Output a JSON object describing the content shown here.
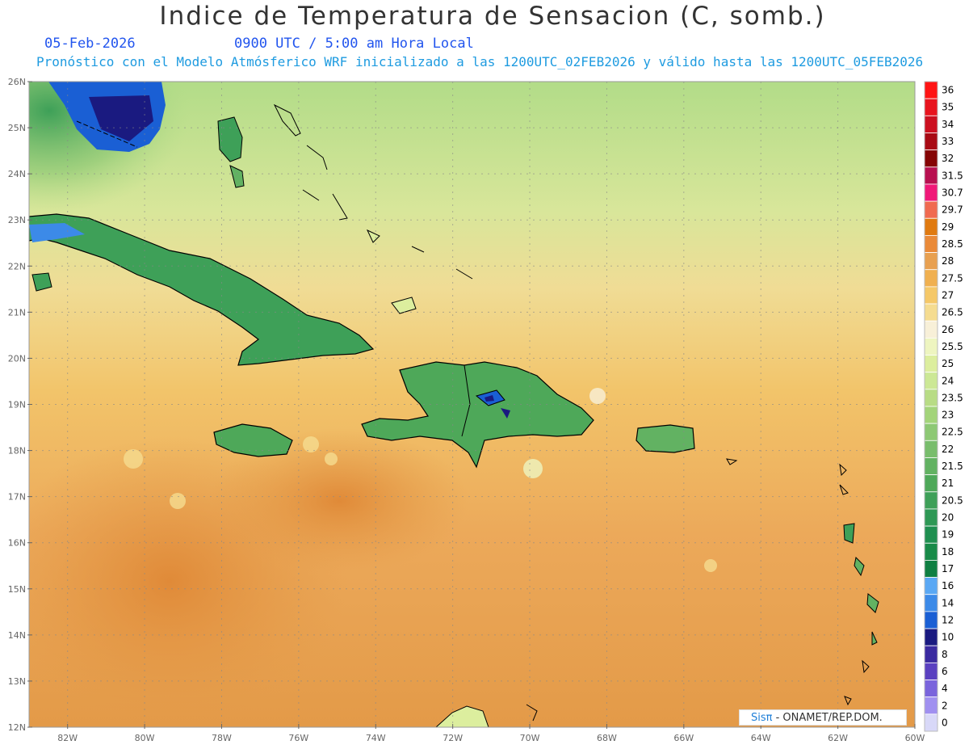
{
  "header": {
    "title": "Indice de Temperatura de Sensacion (C, somb.)",
    "date": "05-Feb-2026",
    "time": "0900 UTC / 5:00 am Hora Local",
    "model_info": "Pronóstico con el Modelo Atmósferico WRF inicializado a las 1200UTC_02FEB2026 y válido hasta las  1200UTC_05FEB2026"
  },
  "map": {
    "lat_range": [
      12,
      26
    ],
    "lon_range": [
      -83,
      -60
    ],
    "lat_labels": [
      "12N",
      "13N",
      "14N",
      "15N",
      "16N",
      "17N",
      "18N",
      "19N",
      "20N",
      "21N",
      "22N",
      "23N",
      "24N",
      "25N",
      "26N"
    ],
    "lon_labels": [
      "82W",
      "80W",
      "78W",
      "76W",
      "74W",
      "72W",
      "70W",
      "68W",
      "66W",
      "64W",
      "62W",
      "60W"
    ],
    "ocean_gradient": [
      "#e39a48",
      "#eca95a",
      "#f2c46a",
      "#f0dc95",
      "#d8e69a",
      "#b2dc88"
    ]
  },
  "colorbar": {
    "levels": [
      {
        "label": "36",
        "color": "#ff1414"
      },
      {
        "label": "35",
        "color": "#e8141e"
      },
      {
        "label": "34",
        "color": "#cc1020"
      },
      {
        "label": "33",
        "color": "#a80a14"
      },
      {
        "label": "32",
        "color": "#850505"
      },
      {
        "label": "31.5",
        "color": "#b81050"
      },
      {
        "label": "30.7",
        "color": "#f01878"
      },
      {
        "label": "29.7",
        "color": "#f06a50"
      },
      {
        "label": "29",
        "color": "#e07a10"
      },
      {
        "label": "28.5",
        "color": "#ea8a38"
      },
      {
        "label": "28",
        "color": "#e8a050"
      },
      {
        "label": "27.5",
        "color": "#f0b050"
      },
      {
        "label": "27",
        "color": "#f5c868"
      },
      {
        "label": "26.5",
        "color": "#f5dc90"
      },
      {
        "label": "26",
        "color": "#f8f0d8"
      },
      {
        "label": "25.5",
        "color": "#eef5c0"
      },
      {
        "label": "25",
        "color": "#dcee9e"
      },
      {
        "label": "24",
        "color": "#cce895"
      },
      {
        "label": "23.5",
        "color": "#b8dc85"
      },
      {
        "label": "23",
        "color": "#a3d47a"
      },
      {
        "label": "22.5",
        "color": "#8dc874"
      },
      {
        "label": "22",
        "color": "#78bd6c"
      },
      {
        "label": "21.5",
        "color": "#62b262"
      },
      {
        "label": "21",
        "color": "#4ea859"
      },
      {
        "label": "20.5",
        "color": "#3ea058"
      },
      {
        "label": "20",
        "color": "#2e9855"
      },
      {
        "label": "19",
        "color": "#1f8f50"
      },
      {
        "label": "18",
        "color": "#188a48"
      },
      {
        "label": "17",
        "color": "#0f7f42"
      },
      {
        "label": "16",
        "color": "#5aa8f4"
      },
      {
        "label": "14",
        "color": "#3c8ae8"
      },
      {
        "label": "12",
        "color": "#1a5fd4"
      },
      {
        "label": "10",
        "color": "#1a1a80"
      },
      {
        "label": "8",
        "color": "#3a2aa0"
      },
      {
        "label": "6",
        "color": "#5a40c0"
      },
      {
        "label": "4",
        "color": "#7a64dc"
      },
      {
        "label": "2",
        "color": "#a090f0"
      },
      {
        "label": "0",
        "color": "#d8d8f8"
      }
    ]
  },
  "credit": {
    "brand": "Sisπ",
    "text": " - ONAMET/REP.DOM."
  }
}
